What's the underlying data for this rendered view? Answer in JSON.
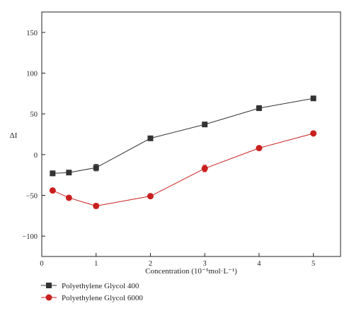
{
  "chart_data": {
    "type": "line",
    "xlabel": "Concentration (10⁻⁵mol·L⁻¹)",
    "ylabel": "ΔI",
    "xlim": [
      0,
      5.5
    ],
    "ylim": [
      -125,
      175
    ],
    "xticks": [
      0,
      1,
      2,
      3,
      4,
      5
    ],
    "yticks": [
      -100,
      -50,
      0,
      50,
      100,
      150
    ],
    "ytick_labels": [
      "−100",
      "−50",
      "0",
      "50",
      "100",
      "150"
    ],
    "grid": false,
    "legend_position": "bottom-left",
    "series": [
      {
        "name": "Polyethylene Glycol 400",
        "color": "#333333",
        "marker": "square",
        "x": [
          0.2,
          0.5,
          1,
          2,
          3,
          4,
          5
        ],
        "y": [
          -23,
          -22,
          -16,
          20,
          37,
          57,
          69
        ],
        "err": [
          3,
          2,
          4,
          2,
          2,
          3,
          2
        ]
      },
      {
        "name": "Polyethylene Glycol 6000",
        "color": "#c8201e",
        "marker": "circle",
        "x": [
          0.2,
          0.5,
          1,
          2,
          3,
          4,
          5
        ],
        "y": [
          -44,
          -53,
          -63,
          -51,
          -17,
          8,
          26
        ],
        "err": [
          2,
          2,
          3,
          2,
          4,
          2,
          2
        ]
      }
    ]
  }
}
